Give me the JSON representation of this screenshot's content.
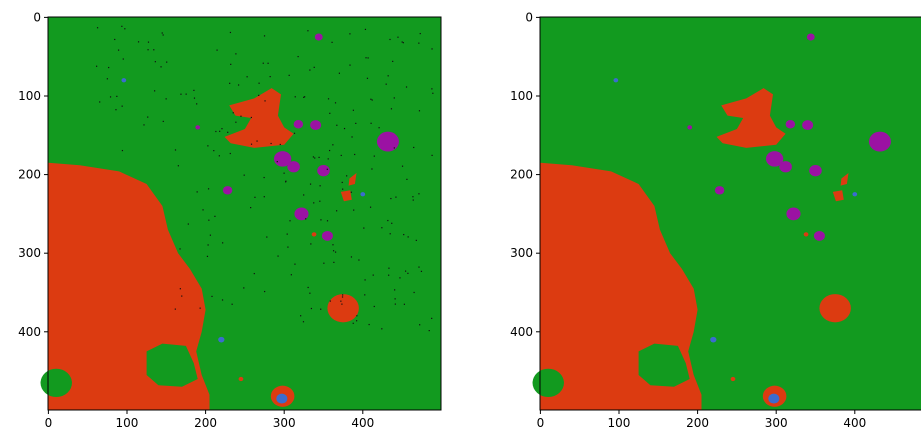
{
  "chart_data": [
    {
      "type": "image",
      "xlim": [
        -0.5,
        499.5
      ],
      "ylim": [
        499.5,
        -0.5
      ],
      "xticks": [
        0,
        100,
        200,
        300,
        400
      ],
      "yticks": [
        0,
        100,
        200,
        300,
        400
      ],
      "colors": [
        "#129a1f",
        "#dc3b11",
        "#9b12a3",
        "#3b6ccf"
      ],
      "noise": true
    },
    {
      "type": "image",
      "xlim": [
        -0.5,
        499.5
      ],
      "ylim": [
        499.5,
        -0.5
      ],
      "xticks": [
        0,
        100,
        200,
        300,
        400
      ],
      "yticks": [
        0,
        100,
        200,
        300,
        400
      ],
      "colors": [
        "#129a1f",
        "#dc3b11",
        "#9b12a3",
        "#3b6ccf"
      ],
      "noise": false
    }
  ]
}
